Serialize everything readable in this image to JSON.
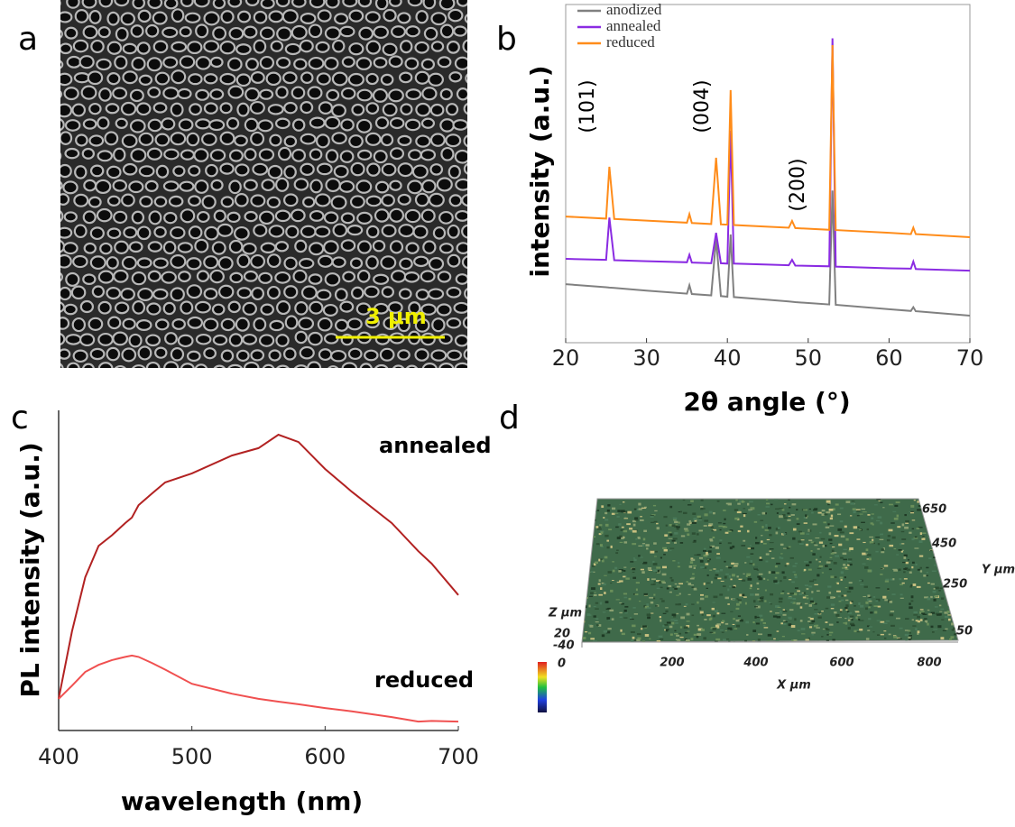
{
  "panels": {
    "a": {
      "label": "a",
      "scale_bar": "3 μm"
    },
    "b": {
      "label": "b"
    },
    "c": {
      "label": "c"
    },
    "d": {
      "label": "d",
      "x_label": "X μm",
      "x_ticks": [
        "200",
        "400",
        "600",
        "800"
      ],
      "y_label": "Y μm",
      "y_ticks": [
        "650",
        "450",
        "250",
        "50"
      ],
      "z_label": "Z μm",
      "z_ticks": [
        "20",
        "-40"
      ],
      "colorbar_label": "0"
    }
  },
  "chart_data": [
    {
      "type": "line",
      "xlabel": "2θ angle (°)",
      "ylabel": "intensity (a.u.)",
      "xlim": [
        20,
        70
      ],
      "xticks": [
        20,
        30,
        40,
        50,
        60,
        70
      ],
      "ylim": [
        0,
        100
      ],
      "legend": "upper left",
      "annotations": [
        "(101)",
        "(004)",
        "(200)"
      ],
      "x": [
        20,
        25,
        25.4,
        26,
        30,
        35,
        35.3,
        35.6,
        38,
        38.6,
        39.2,
        40,
        40.4,
        40.8,
        45,
        47.6,
        48,
        48.4,
        52.6,
        53,
        53.4,
        60,
        62.7,
        63,
        63.3,
        70
      ],
      "series": [
        {
          "name": "anodized",
          "color": "#808080",
          "values": [
            17.3,
            16.4,
            16.3,
            16.2,
            15.4,
            14.5,
            17,
            14.4,
            14,
            30.7,
            13.8,
            13.6,
            32,
            13.5,
            12.7,
            12.2,
            12.1,
            12,
            11.3,
            45,
            11.2,
            9.9,
            9.4,
            10.5,
            9.3,
            8
          ]
        },
        {
          "name": "annealed",
          "color": "#8a2be2",
          "values": [
            24.8,
            24.5,
            37,
            24.4,
            24.1,
            23.8,
            26,
            23.7,
            23.5,
            32.5,
            23.5,
            23.4,
            62.7,
            23.4,
            23.1,
            22.9,
            24.5,
            22.8,
            22.6,
            90,
            22.5,
            22,
            21.9,
            24,
            21.8,
            21.3
          ]
        },
        {
          "name": "reduced",
          "color": "#ff8c1a",
          "values": [
            37.3,
            36.7,
            52,
            36.6,
            36.1,
            35.5,
            38,
            35.4,
            35.1,
            54.7,
            35,
            34.9,
            74.7,
            34.8,
            34.3,
            34,
            36,
            33.9,
            33.4,
            88,
            33.3,
            32.5,
            32.1,
            34,
            32.1,
            31.2
          ]
        }
      ]
    },
    {
      "type": "line",
      "xlabel": "wavelength (nm)",
      "ylabel": "PL intensity (a.u.)",
      "xlim": [
        400,
        700
      ],
      "xticks": [
        400,
        500,
        600,
        700
      ],
      "ylim": [
        0,
        100
      ],
      "x": [
        400,
        410,
        420,
        430,
        440,
        450,
        455,
        460,
        470,
        480,
        500,
        530,
        550,
        565,
        580,
        600,
        620,
        650,
        670,
        680,
        700
      ],
      "series": [
        {
          "name": "annealed",
          "color": "#b22222",
          "values": [
            9.9,
            31,
            47.9,
            57.7,
            61,
            64.8,
            66.5,
            70.4,
            74,
            77.5,
            80.3,
            85.9,
            88.2,
            92.4,
            90.1,
            81.7,
            74.6,
            64.8,
            56,
            52.1,
            42.3
          ]
        },
        {
          "name": "reduced",
          "color": "#f05050",
          "values": [
            9.9,
            14,
            18.3,
            20.5,
            22,
            23,
            23.4,
            23,
            21.1,
            19,
            14.6,
            11.5,
            9.9,
            9,
            8.2,
            7,
            6,
            4.2,
            2.8,
            3,
            2.8
          ]
        }
      ]
    }
  ]
}
